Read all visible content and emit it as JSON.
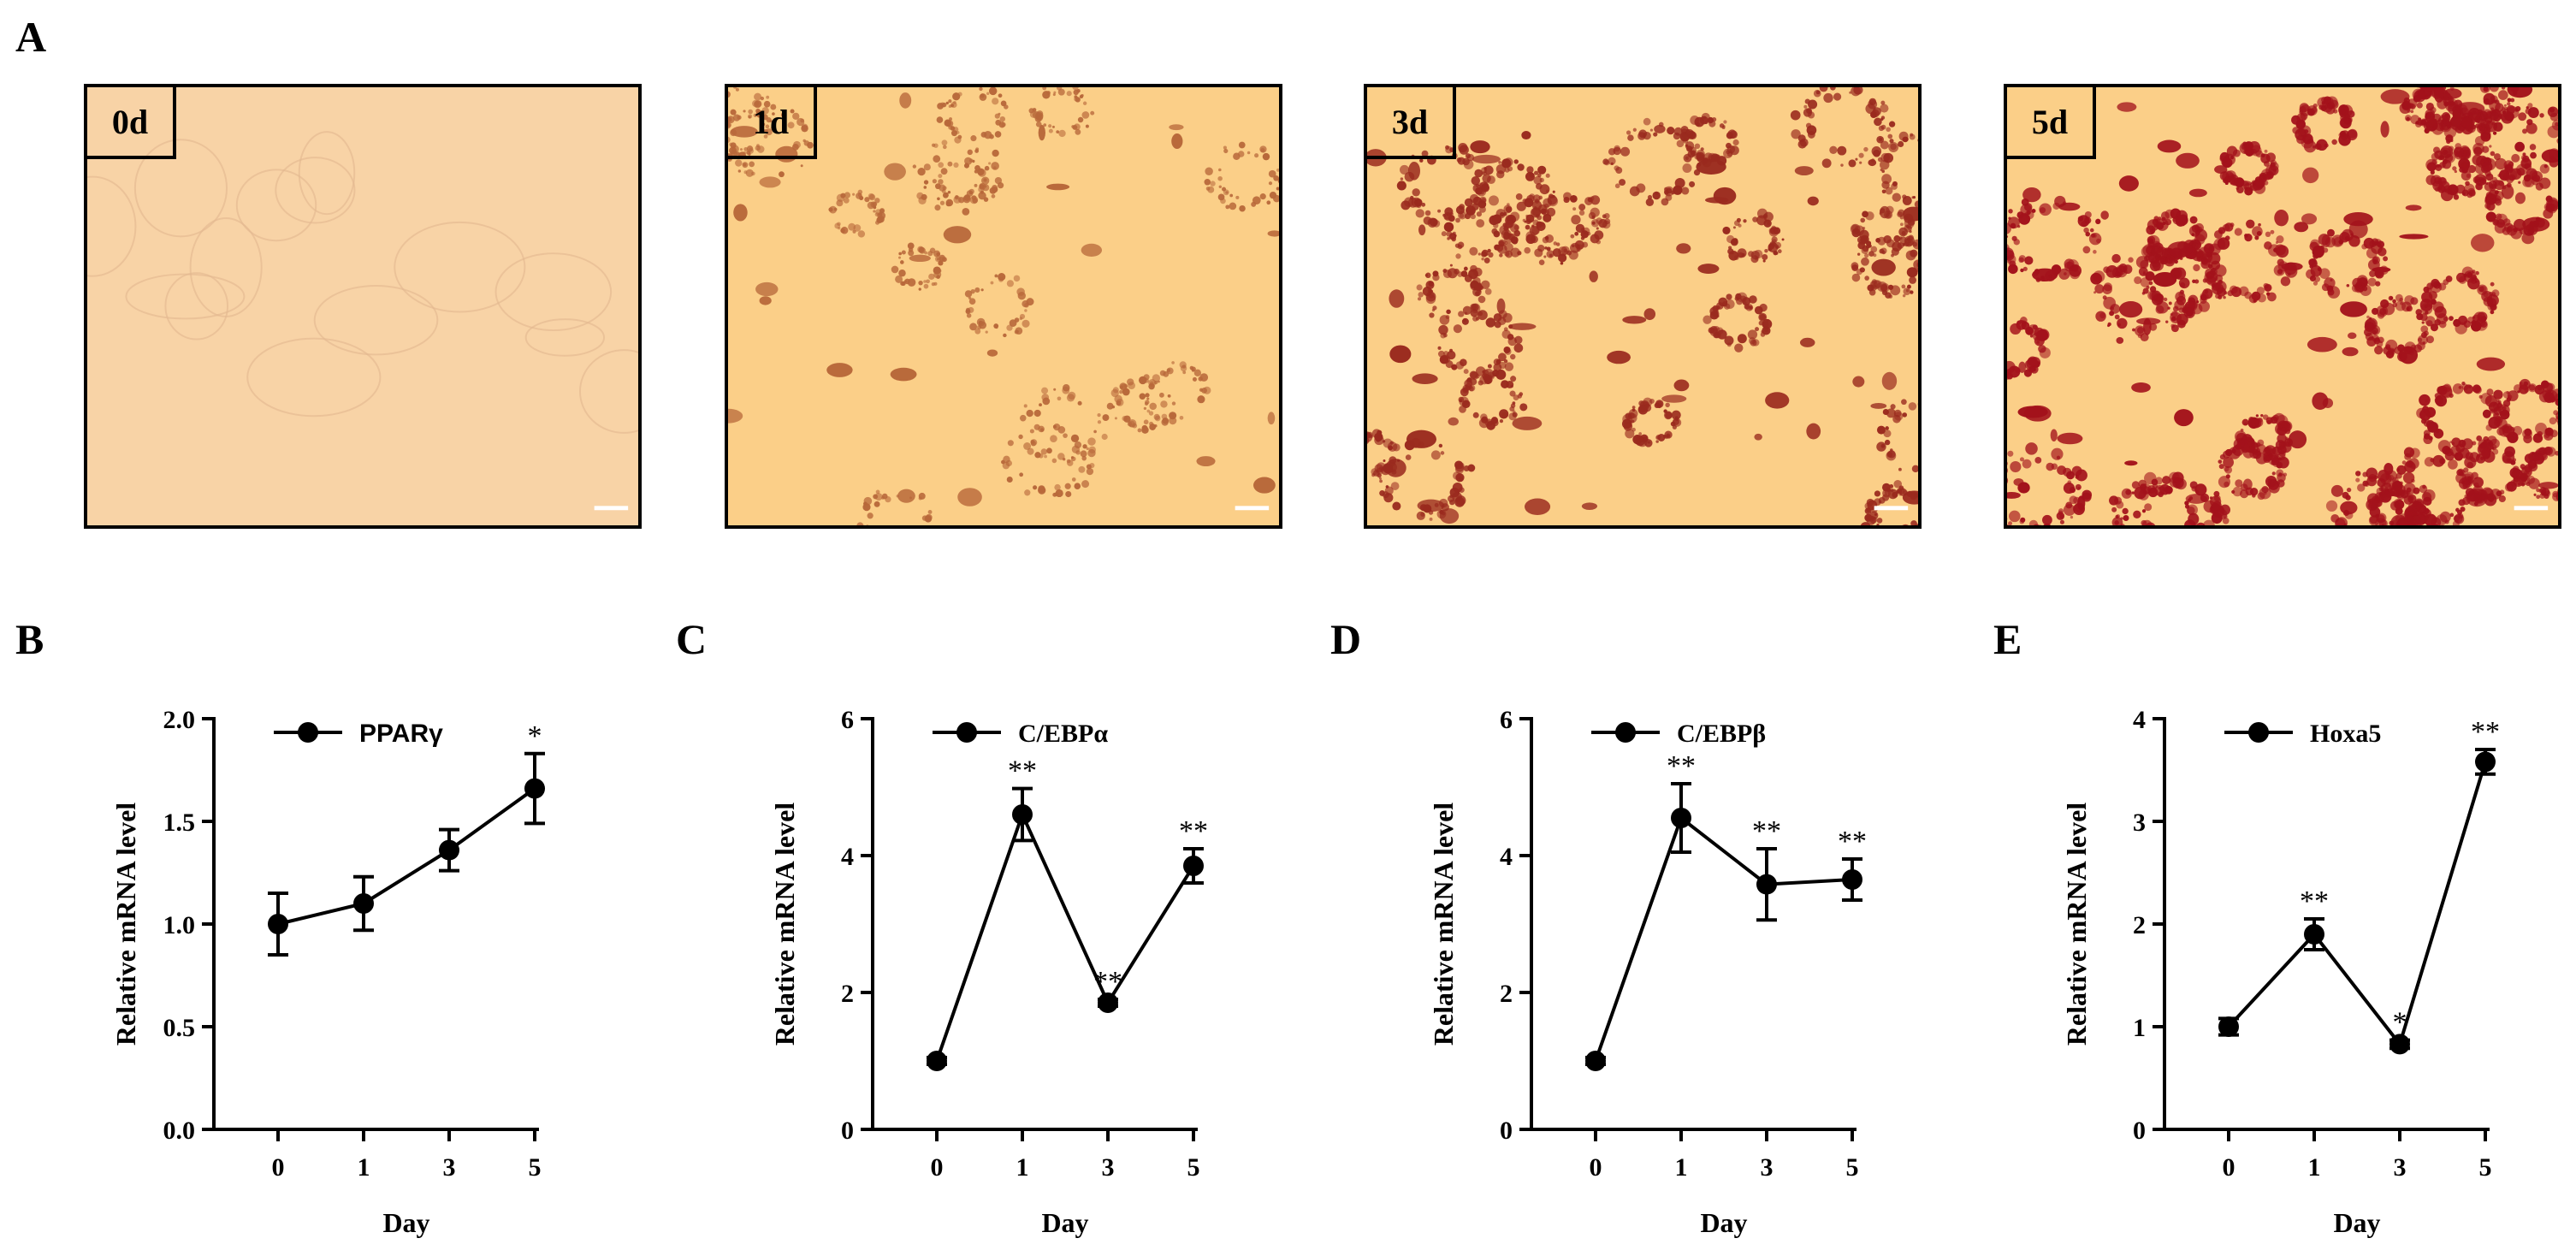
{
  "figure": {
    "panel_letters": {
      "a": "A",
      "b": "B",
      "c": "C",
      "d": "D",
      "e": "E"
    }
  },
  "micrographs": [
    {
      "label": "0d",
      "stain": 0.0
    },
    {
      "label": "1d",
      "stain": 0.35
    },
    {
      "label": "3d",
      "stain": 0.65
    },
    {
      "label": "5d",
      "stain": 1.0
    }
  ],
  "colors": {
    "background_0d": "#f8d3a6",
    "background_stained": "#fbcf88",
    "stain_light": "#b8683a",
    "stain_dark": "#a3121b",
    "line": "#000000"
  },
  "chart_data": [
    {
      "type": "line",
      "panel": "B",
      "categories": [
        "0",
        "1",
        "3",
        "5"
      ],
      "series": [
        {
          "name": "PPARγ",
          "values": [
            1.0,
            1.1,
            1.36,
            1.66
          ]
        }
      ],
      "error": [
        0.15,
        0.13,
        0.1,
        0.17
      ],
      "significance": [
        "",
        "",
        "",
        "*"
      ],
      "xlabel": "Day",
      "ylabel": "Relative mRNA  level",
      "ylim": [
        0,
        2.0
      ],
      "yticks": [
        "0.0",
        "0.5",
        "1.0",
        "1.5",
        "2.0"
      ],
      "legend_font": "sans"
    },
    {
      "type": "line",
      "panel": "C",
      "categories": [
        "0",
        "1",
        "3",
        "5"
      ],
      "series": [
        {
          "name": "C/EBPα",
          "values": [
            1.0,
            4.6,
            1.85,
            3.85
          ]
        }
      ],
      "error": [
        0.05,
        0.38,
        0.05,
        0.25
      ],
      "significance": [
        "",
        "**",
        "**",
        "**"
      ],
      "xlabel": "Day",
      "ylabel": "Relative mRNA  level",
      "ylim": [
        0,
        6
      ],
      "yticks": [
        "0",
        "2",
        "4",
        "6"
      ],
      "legend_font": "serif"
    },
    {
      "type": "line",
      "panel": "D",
      "categories": [
        "0",
        "1",
        "3",
        "5"
      ],
      "series": [
        {
          "name": "C/EBPβ",
          "values": [
            1.0,
            4.55,
            3.58,
            3.65
          ]
        }
      ],
      "error": [
        0.05,
        0.5,
        0.52,
        0.3
      ],
      "significance": [
        "",
        "**",
        "**",
        "**"
      ],
      "xlabel": "Day",
      "ylabel": "Relative mRNA  level",
      "ylim": [
        0,
        6
      ],
      "yticks": [
        "0",
        "2",
        "4",
        "6"
      ],
      "legend_font": "serif"
    },
    {
      "type": "line",
      "panel": "E",
      "categories": [
        "0",
        "1",
        "3",
        "5"
      ],
      "series": [
        {
          "name": "Hoxa5",
          "values": [
            1.0,
            1.9,
            0.83,
            3.58
          ]
        }
      ],
      "error": [
        0.08,
        0.15,
        0.04,
        0.12
      ],
      "significance": [
        "",
        "**",
        "*",
        "**"
      ],
      "xlabel": "Day",
      "ylabel": "Relative mRNA level",
      "ylim": [
        0,
        4
      ],
      "yticks": [
        "0",
        "1",
        "2",
        "3",
        "4"
      ],
      "legend_font": "serif"
    }
  ]
}
